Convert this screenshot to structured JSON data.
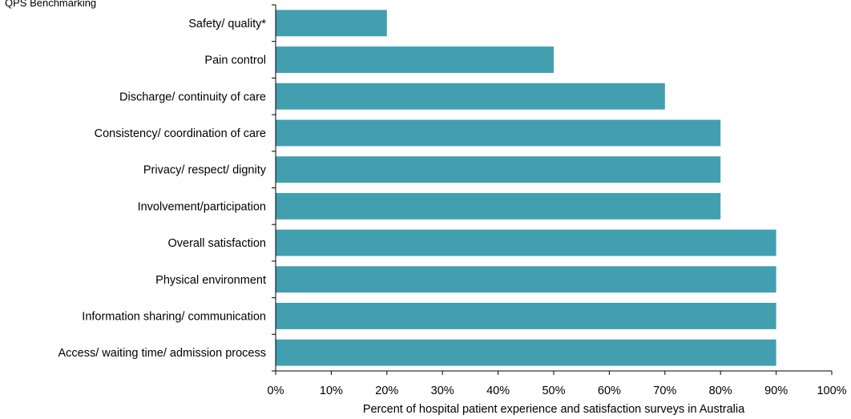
{
  "chart_data": {
    "type": "bar",
    "orientation": "horizontal",
    "corner_note": "QPS Benchmarking",
    "categories": [
      "Safety/ quality*",
      "Pain control",
      "Discharge/ continuity of care",
      "Consistency/ coordination of care",
      "Privacy/ respect/ dignity",
      "Involvement/participation",
      "Overall satisfaction",
      "Physical environment",
      "Information sharing/ communication",
      "Access/ waiting time/ admission process"
    ],
    "values": [
      20,
      50,
      70,
      80,
      80,
      80,
      90,
      90,
      90,
      90
    ],
    "xlabel": "Percent of hospital patient experience and satisfaction surveys in Australia",
    "ylabel": "",
    "xlim": [
      0,
      100
    ],
    "xticks": [
      "0%",
      "10%",
      "20%",
      "30%",
      "40%",
      "50%",
      "60%",
      "70%",
      "80%",
      "90%",
      "100%"
    ],
    "grid": false,
    "legend": "none",
    "bar_color": "#419FB0"
  }
}
